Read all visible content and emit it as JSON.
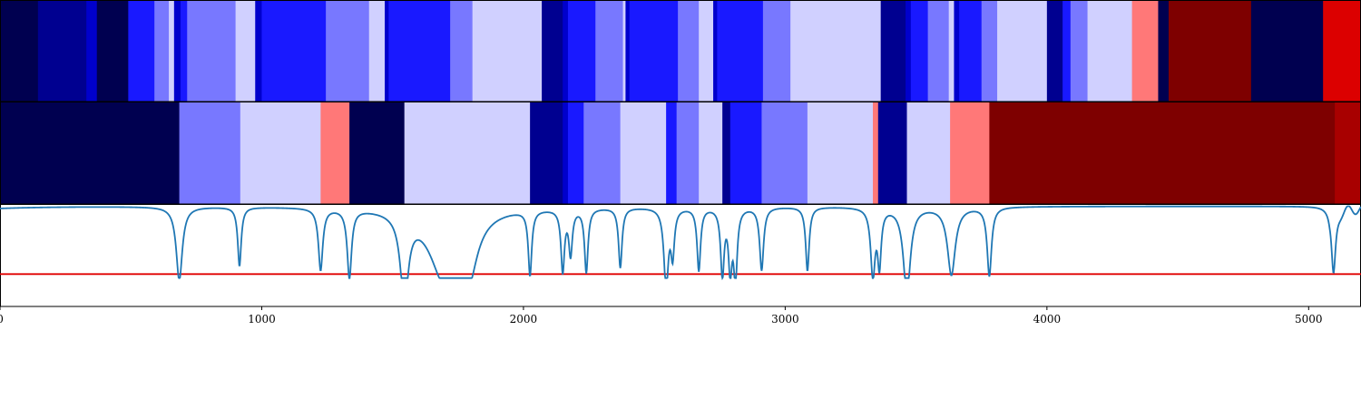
{
  "chart_data": {
    "type": "heatmap",
    "title": "",
    "xlabel": "",
    "ylabel": "",
    "xlim": [
      0,
      5200
    ],
    "grid": false,
    "legend": "none",
    "x_ticks": [
      0,
      1000,
      2000,
      3000,
      4000,
      5000
    ],
    "x_tick_labels": [
      "0",
      "1000",
      "2000",
      "3000",
      "4000",
      "5000"
    ],
    "colors": {
      "navy_dark": "#000050",
      "navy": "#000090",
      "blue_deep": "#0000cc",
      "blue": "#1919ff",
      "blue_mid": "#7878ff",
      "lavender": "#d0d0ff",
      "salmon": "#ff7878",
      "red": "#dc0000",
      "red_dark": "#a80000",
      "maroon": "#7e0000",
      "line": "#1f77b4",
      "threshold": "#e00000"
    },
    "heatmap_rows": [
      {
        "segments": [
          {
            "x0": 0,
            "x1": 145,
            "c": "navy_dark"
          },
          {
            "x0": 145,
            "x1": 330,
            "c": "navy"
          },
          {
            "x0": 330,
            "x1": 370,
            "c": "blue_deep"
          },
          {
            "x0": 370,
            "x1": 490,
            "c": "navy_dark"
          },
          {
            "x0": 490,
            "x1": 590,
            "c": "blue"
          },
          {
            "x0": 590,
            "x1": 645,
            "c": "blue_mid"
          },
          {
            "x0": 645,
            "x1": 665,
            "c": "lavender"
          },
          {
            "x0": 665,
            "x1": 690,
            "c": "blue_deep"
          },
          {
            "x0": 690,
            "x1": 715,
            "c": "blue"
          },
          {
            "x0": 715,
            "x1": 900,
            "c": "blue_mid"
          },
          {
            "x0": 900,
            "x1": 975,
            "c": "lavender"
          },
          {
            "x0": 975,
            "x1": 1000,
            "c": "blue_deep"
          },
          {
            "x0": 1000,
            "x1": 1245,
            "c": "blue"
          },
          {
            "x0": 1245,
            "x1": 1410,
            "c": "blue_mid"
          },
          {
            "x0": 1410,
            "x1": 1470,
            "c": "lavender"
          },
          {
            "x0": 1470,
            "x1": 1485,
            "c": "blue_deep"
          },
          {
            "x0": 1485,
            "x1": 1720,
            "c": "blue"
          },
          {
            "x0": 1720,
            "x1": 1805,
            "c": "blue_mid"
          },
          {
            "x0": 1805,
            "x1": 2070,
            "c": "lavender"
          },
          {
            "x0": 2070,
            "x1": 2150,
            "c": "navy"
          },
          {
            "x0": 2150,
            "x1": 2170,
            "c": "blue_deep"
          },
          {
            "x0": 2170,
            "x1": 2275,
            "c": "blue"
          },
          {
            "x0": 2275,
            "x1": 2380,
            "c": "blue_mid"
          },
          {
            "x0": 2380,
            "x1": 2390,
            "c": "lavender"
          },
          {
            "x0": 2390,
            "x1": 2405,
            "c": "blue_deep"
          },
          {
            "x0": 2405,
            "x1": 2590,
            "c": "blue"
          },
          {
            "x0": 2590,
            "x1": 2670,
            "c": "blue_mid"
          },
          {
            "x0": 2670,
            "x1": 2725,
            "c": "lavender"
          },
          {
            "x0": 2725,
            "x1": 2740,
            "c": "blue_deep"
          },
          {
            "x0": 2740,
            "x1": 2915,
            "c": "blue"
          },
          {
            "x0": 2915,
            "x1": 3020,
            "c": "blue_mid"
          },
          {
            "x0": 3020,
            "x1": 3365,
            "c": "lavender"
          },
          {
            "x0": 3365,
            "x1": 3460,
            "c": "navy"
          },
          {
            "x0": 3460,
            "x1": 3480,
            "c": "blue_deep"
          },
          {
            "x0": 3480,
            "x1": 3545,
            "c": "blue"
          },
          {
            "x0": 3545,
            "x1": 3625,
            "c": "blue_mid"
          },
          {
            "x0": 3625,
            "x1": 3645,
            "c": "lavender"
          },
          {
            "x0": 3645,
            "x1": 3665,
            "c": "blue_deep"
          },
          {
            "x0": 3665,
            "x1": 3750,
            "c": "blue"
          },
          {
            "x0": 3750,
            "x1": 3810,
            "c": "blue_mid"
          },
          {
            "x0": 3810,
            "x1": 4000,
            "c": "lavender"
          },
          {
            "x0": 4000,
            "x1": 4060,
            "c": "navy"
          },
          {
            "x0": 4060,
            "x1": 4090,
            "c": "blue"
          },
          {
            "x0": 4090,
            "x1": 4155,
            "c": "blue_mid"
          },
          {
            "x0": 4155,
            "x1": 4325,
            "c": "lavender"
          },
          {
            "x0": 4325,
            "x1": 4425,
            "c": "salmon"
          },
          {
            "x0": 4425,
            "x1": 4465,
            "c": "navy_dark"
          },
          {
            "x0": 4465,
            "x1": 4780,
            "c": "maroon"
          },
          {
            "x0": 4780,
            "x1": 5055,
            "c": "navy_dark"
          },
          {
            "x0": 5055,
            "x1": 5200,
            "c": "red"
          }
        ]
      },
      {
        "segments": [
          {
            "x0": 0,
            "x1": 685,
            "c": "navy_dark"
          },
          {
            "x0": 685,
            "x1": 918,
            "c": "blue_mid"
          },
          {
            "x0": 918,
            "x1": 1225,
            "c": "lavender"
          },
          {
            "x0": 1225,
            "x1": 1335,
            "c": "salmon"
          },
          {
            "x0": 1335,
            "x1": 1545,
            "c": "navy_dark"
          },
          {
            "x0": 1545,
            "x1": 2025,
            "c": "lavender"
          },
          {
            "x0": 2025,
            "x1": 2150,
            "c": "navy"
          },
          {
            "x0": 2150,
            "x1": 2170,
            "c": "blue_deep"
          },
          {
            "x0": 2170,
            "x1": 2230,
            "c": "blue"
          },
          {
            "x0": 2230,
            "x1": 2370,
            "c": "blue_mid"
          },
          {
            "x0": 2370,
            "x1": 2545,
            "c": "lavender"
          },
          {
            "x0": 2545,
            "x1": 2585,
            "c": "blue"
          },
          {
            "x0": 2585,
            "x1": 2670,
            "c": "blue_mid"
          },
          {
            "x0": 2670,
            "x1": 2760,
            "c": "lavender"
          },
          {
            "x0": 2760,
            "x1": 2790,
            "c": "navy"
          },
          {
            "x0": 2790,
            "x1": 2910,
            "c": "blue"
          },
          {
            "x0": 2910,
            "x1": 3085,
            "c": "blue_mid"
          },
          {
            "x0": 3085,
            "x1": 3335,
            "c": "lavender"
          },
          {
            "x0": 3335,
            "x1": 3355,
            "c": "salmon"
          },
          {
            "x0": 3355,
            "x1": 3465,
            "c": "navy"
          },
          {
            "x0": 3465,
            "x1": 3630,
            "c": "lavender"
          },
          {
            "x0": 3630,
            "x1": 3780,
            "c": "salmon"
          },
          {
            "x0": 3780,
            "x1": 5100,
            "c": "maroon"
          },
          {
            "x0": 5100,
            "x1": 5200,
            "c": "red_dark"
          }
        ]
      }
    ],
    "series": [
      {
        "type": "line",
        "color": "line",
        "baseline": 1.0,
        "dips": [
          {
            "x": 685,
            "depth": 0.74,
            "w": 14
          },
          {
            "x": 915,
            "depth": 0.59,
            "w": 8
          },
          {
            "x": 1225,
            "depth": 0.62,
            "w": 10
          },
          {
            "x": 1335,
            "depth": 0.69,
            "w": 10
          },
          {
            "x": 1545,
            "depth": 0.86,
            "w": 18
          },
          {
            "x": 1700,
            "depth": 0.7,
            "w": 70
          },
          {
            "x": 1790,
            "depth": 0.55,
            "w": 40
          },
          {
            "x": 2025,
            "depth": 0.65,
            "w": 8
          },
          {
            "x": 2150,
            "depth": 0.62,
            "w": 8
          },
          {
            "x": 2180,
            "depth": 0.45,
            "w": 8
          },
          {
            "x": 2240,
            "depth": 0.64,
            "w": 8
          },
          {
            "x": 2370,
            "depth": 0.6,
            "w": 8
          },
          {
            "x": 2545,
            "depth": 0.8,
            "w": 10
          },
          {
            "x": 2570,
            "depth": 0.45,
            "w": 8
          },
          {
            "x": 2670,
            "depth": 0.63,
            "w": 8
          },
          {
            "x": 2760,
            "depth": 0.67,
            "w": 8
          },
          {
            "x": 2790,
            "depth": 0.6,
            "w": 8
          },
          {
            "x": 2810,
            "depth": 0.7,
            "w": 8
          },
          {
            "x": 2910,
            "depth": 0.63,
            "w": 9
          },
          {
            "x": 3085,
            "depth": 0.64,
            "w": 8
          },
          {
            "x": 3335,
            "depth": 0.68,
            "w": 10
          },
          {
            "x": 3360,
            "depth": 0.55,
            "w": 8
          },
          {
            "x": 3465,
            "depth": 0.88,
            "w": 16
          },
          {
            "x": 3635,
            "depth": 0.68,
            "w": 18
          },
          {
            "x": 3780,
            "depth": 0.69,
            "w": 10
          },
          {
            "x": 5095,
            "depth": 0.71,
            "w": 10
          }
        ],
        "tail": {
          "x_start": 5080,
          "amplitude": 0.18
        }
      }
    ],
    "threshold": {
      "y": 0.32,
      "color": "threshold"
    },
    "line_ylim": [
      0.0,
      1.0
    ]
  }
}
